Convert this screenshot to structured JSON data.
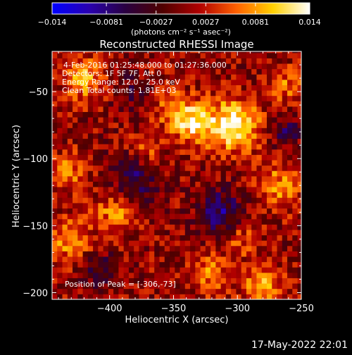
{
  "colorbar": {
    "ticks": [
      "-0.014",
      "-0.0081",
      "-0.0027",
      "0.0027",
      "0.0081",
      "0.014"
    ],
    "unit_label": "(photons cm⁻² s⁻¹ asec⁻²)",
    "stops": [
      "#0000ff",
      "#2a00b0",
      "#2a0040",
      "#500000",
      "#b00000",
      "#ff6000",
      "#ffd000",
      "#ffffff"
    ]
  },
  "chart_data": {
    "type": "heatmap",
    "title": "Reconstructed RHESSI Image",
    "xlabel": "Heliocentric X (arcsec)",
    "ylabel": "Heliocentric Y (arcsec)",
    "xlim": [
      -445,
      -250
    ],
    "ylim": [
      -205,
      -20
    ],
    "value_range": [
      -0.014,
      0.014
    ],
    "x_ticks": [
      {
        "value": -400,
        "label": "-400"
      },
      {
        "value": -350,
        "label": "-350"
      },
      {
        "value": -300,
        "label": "-300"
      },
      {
        "value": -250,
        "label": "-250"
      }
    ],
    "y_ticks": [
      {
        "value": -50,
        "label": "-50"
      },
      {
        "value": -100,
        "label": "-100"
      },
      {
        "value": -150,
        "label": "-150"
      },
      {
        "value": -200,
        "label": "-200"
      }
    ],
    "annotations": [
      "4-Feb-2016 01:25:48.000 to 01:27:36.000",
      "Detectors: 1F 5F 7F, Att 0",
      "Energy Range: 12.0 - 25.0 keV",
      "Clean     Total counts: 1.81E+03"
    ],
    "peak_label": "Position of Peak = [-306,-73]",
    "sources": [
      {
        "x": -303,
        "y": -75,
        "amplitude": 1.0,
        "sigma": 13
      },
      {
        "x": -335,
        "y": -73,
        "amplitude": 0.8,
        "sigma": 11
      },
      {
        "x": -352,
        "y": -62,
        "amplitude": 0.45,
        "sigma": 9
      },
      {
        "x": -372,
        "y": -92,
        "amplitude": 0.45,
        "sigma": 8
      },
      {
        "x": -420,
        "y": -40,
        "amplitude": 0.6,
        "sigma": 11
      },
      {
        "x": -432,
        "y": -110,
        "amplitude": 0.45,
        "sigma": 10
      },
      {
        "x": -432,
        "y": -160,
        "amplitude": 0.5,
        "sigma": 12
      },
      {
        "x": -395,
        "y": -140,
        "amplitude": 0.5,
        "sigma": 11
      },
      {
        "x": -322,
        "y": -185,
        "amplitude": 0.5,
        "sigma": 10
      },
      {
        "x": -280,
        "y": -195,
        "amplitude": 0.65,
        "sigma": 10
      },
      {
        "x": -268,
        "y": -120,
        "amplitude": 0.5,
        "sigma": 12
      },
      {
        "x": -298,
        "y": -160,
        "amplitude": 0.35,
        "sigma": 9
      },
      {
        "x": -260,
        "y": -45,
        "amplitude": 0.4,
        "sigma": 10
      }
    ],
    "troughs": [
      {
        "x": -380,
        "y": -115,
        "amplitude": 0.5,
        "sigma": 13
      },
      {
        "x": -313,
        "y": -140,
        "amplitude": 0.6,
        "sigma": 12
      },
      {
        "x": -408,
        "y": -182,
        "amplitude": 0.35,
        "sigma": 10
      },
      {
        "x": -262,
        "y": -80,
        "amplitude": 0.45,
        "sigma": 8
      },
      {
        "x": -385,
        "y": -50,
        "amplitude": 0.3,
        "sigma": 9
      }
    ]
  },
  "footer_timestamp": "17-May-2022 22:01"
}
